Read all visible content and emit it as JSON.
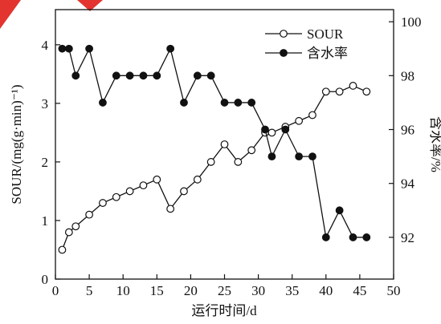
{
  "chart_data": {
    "type": "line",
    "xlabel": "运行时间/d",
    "ylabel_left": "SOUR/(mg(g·min)⁻¹)",
    "ylabel_right": "含水率/%",
    "xlim": [
      0,
      50
    ],
    "ylim_left": [
      0,
      4.6
    ],
    "ylim_right": [
      90.45,
      100.45
    ],
    "x_ticks": [
      "0",
      "5",
      "10",
      "15",
      "20",
      "25",
      "30",
      "35",
      "40",
      "45",
      "50"
    ],
    "y_left_ticks": [
      "0",
      "1",
      "2",
      "3",
      "4"
    ],
    "y_right_ticks": [
      "92",
      "94",
      "96",
      "98",
      "100"
    ],
    "legend_position": "top-right",
    "grid": false,
    "series": [
      {
        "name": "SOUR",
        "axis": "left",
        "marker": "open-circle",
        "x": [
          1,
          2,
          3,
          5,
          7,
          9,
          11,
          13,
          15,
          17,
          19,
          21,
          23,
          25,
          27,
          29,
          31,
          32,
          34,
          36,
          38,
          40,
          42,
          44,
          46
        ],
        "y": [
          0.5,
          0.8,
          0.9,
          1.1,
          1.3,
          1.4,
          1.5,
          1.6,
          1.7,
          1.2,
          1.5,
          1.7,
          2.0,
          2.3,
          2.0,
          2.2,
          2.5,
          2.5,
          2.6,
          2.7,
          2.8,
          3.2,
          3.2,
          3.3,
          3.2
        ]
      },
      {
        "name": "含水率",
        "axis": "right",
        "marker": "filled-circle",
        "x": [
          1,
          2,
          3,
          5,
          7,
          9,
          11,
          13,
          15,
          17,
          19,
          21,
          23,
          25,
          27,
          29,
          31,
          32,
          34,
          36,
          38,
          40,
          42,
          44,
          46
        ],
        "y": [
          99,
          99,
          98,
          99,
          97,
          98,
          98,
          98,
          98,
          99,
          97,
          98,
          98,
          97,
          97,
          97,
          96,
          95,
          96,
          95,
          95,
          92,
          93,
          92,
          92
        ]
      }
    ]
  },
  "colors": {
    "ink": "#111111",
    "corner_mark": "#e3342f"
  }
}
